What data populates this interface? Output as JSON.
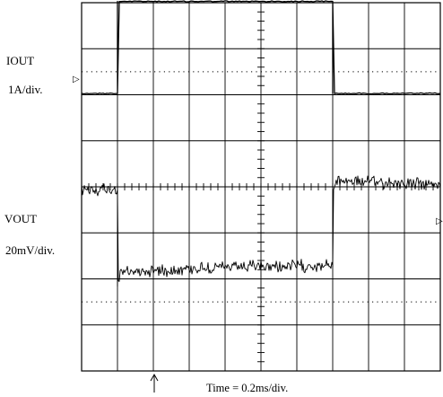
{
  "chart_data": {
    "type": "line",
    "title": "",
    "grid": true,
    "x_divisions": 10,
    "y_divisions": 8,
    "xlabel": "Time = 0.2ms/div.",
    "time_per_div": "0.2ms/div.",
    "x_unit": "ms",
    "x_range": [
      0,
      2.0
    ],
    "trigger_time_ms": 0.2,
    "channel_markers": [
      "▷",
      "▷"
    ],
    "series": [
      {
        "name": "IOUT",
        "scale": "1A/div.",
        "unit": "A",
        "noise": "low",
        "x": [
          0,
          0.2,
          0.2,
          0.7,
          1.4,
          1.4,
          2.0
        ],
        "values": [
          0,
          0,
          2.0,
          2.0,
          2.0,
          0,
          0
        ]
      },
      {
        "name": "VOUT",
        "scale": "20mV/div.",
        "unit": "mV",
        "noise": "high",
        "x": [
          0,
          0.2,
          0.2,
          0.22,
          0.7,
          1.4,
          1.4,
          1.43,
          2.0
        ],
        "values": [
          0,
          0,
          -42,
          -36,
          -34,
          -33,
          0,
          4,
          2
        ]
      }
    ]
  }
}
